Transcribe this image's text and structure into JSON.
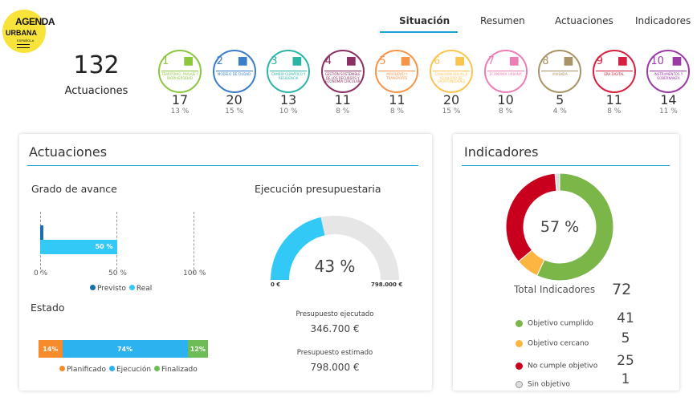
{
  "logo": {
    "line1": "AGENDA",
    "line2": "URBANA",
    "line3": "ESPAÑOLA"
  },
  "tabs": [
    {
      "label": "Situación",
      "active": true
    },
    {
      "label": "Resumen"
    },
    {
      "label": "Actuaciones"
    },
    {
      "label": "Indicadores"
    }
  ],
  "summary": {
    "total": "132",
    "label": "Actuaciones"
  },
  "objectives": [
    {
      "n": "1",
      "name": "Territorio, paisaje y biodiversidad",
      "count": "17",
      "pct": "13 %",
      "color": "#8dc63f",
      "icon": "tree-icon"
    },
    {
      "n": "2",
      "name": "Modelo de ciudad",
      "count": "20",
      "pct": "15 %",
      "color": "#3a7dc9",
      "icon": "house-icon"
    },
    {
      "n": "3",
      "name": "Cambio climático y resiliencia",
      "count": "13",
      "pct": "10 %",
      "color": "#2bb5a6",
      "icon": "cloud-rain-icon"
    },
    {
      "n": "4",
      "name": "Gestión sostenible de los recursos y economía circular",
      "count": "11",
      "pct": "8 %",
      "color": "#8b2f64",
      "icon": "bar-chart-icon"
    },
    {
      "n": "5",
      "name": "Movilidad y transporte",
      "count": "11",
      "pct": "8 %",
      "color": "#f7944a",
      "icon": "bus-icon"
    },
    {
      "n": "6",
      "name": "Cohesión social e igualdad de oportunidades",
      "count": "20",
      "pct": "15 %",
      "color": "#fbc451",
      "icon": "hands-people-icon"
    },
    {
      "n": "7",
      "name": "Economía urbana",
      "count": "10",
      "pct": "8 %",
      "color": "#ee7db5",
      "icon": "piggy-bank-icon"
    },
    {
      "n": "8",
      "name": "Vivienda",
      "count": "5",
      "pct": "4 %",
      "color": "#a89466",
      "icon": "key-house-icon"
    },
    {
      "n": "9",
      "name": "Era digital",
      "count": "11",
      "pct": "8 %",
      "color": "#d6203f",
      "icon": "digital-city-icon"
    },
    {
      "n": "10",
      "name": "Instrumentos y gobernanza",
      "count": "14",
      "pct": "11 %",
      "color": "#9b3aa6",
      "icon": "people-icon"
    }
  ],
  "actuaciones": {
    "title": "Actuaciones",
    "grado": {
      "title": "Grado de avance",
      "previsto": 2,
      "real": 50,
      "real_label": "50 %",
      "ticks": [
        "0 %",
        "50 %",
        "100 %"
      ],
      "legend": [
        "Previsto",
        "Real"
      ],
      "colors": {
        "previsto": "#1a6fad",
        "real": "#33c9f7"
      }
    },
    "estado": {
      "title": "Estado",
      "segments": [
        {
          "label": "Planificado",
          "value": 14,
          "text": "14%",
          "color": "#f68b2c"
        },
        {
          "label": "Ejecución",
          "value": 74,
          "text": "74%",
          "color": "#2cb3ef"
        },
        {
          "label": "Finalizado",
          "value": 12,
          "text": "12%",
          "color": "#6dbd57"
        }
      ]
    },
    "presupuesto": {
      "title": "Ejecución presupuestaria",
      "percent": 43,
      "percent_label": "43 %",
      "min": "0 €",
      "max": "798.000 €",
      "ejecutado_label": "Presupuesto ejecutado",
      "ejecutado": "346.700 €",
      "estimado_label": "Presupuesto estimado",
      "estimado": "798.000 €",
      "colors": {
        "fill": "#33c9f7",
        "track": "#e6e6e6"
      }
    }
  },
  "indicadores": {
    "title": "Indicadores",
    "center": "57 %",
    "total_label": "Total Indicadores",
    "total": "72",
    "items": [
      {
        "label": "Objetivo cumplido",
        "value": "41",
        "color": "#7ab648"
      },
      {
        "label": "Objetivo cercano",
        "value": "5",
        "color": "#fbb540"
      },
      {
        "label": "No cumple objetivo",
        "value": "25",
        "color": "#c8001e"
      },
      {
        "label": "Sin objetivo",
        "value": "1",
        "color": "#dddddd"
      }
    ]
  }
}
